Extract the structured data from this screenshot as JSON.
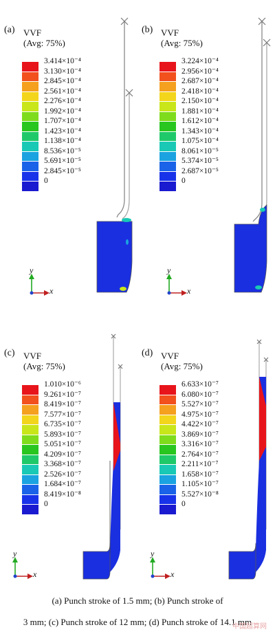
{
  "panels": [
    {
      "id": "a",
      "label": "(a)",
      "legend_title_1": "VVF",
      "legend_title_2": "(Avg: 75%)",
      "values": [
        "3.414×10⁻⁴",
        "3.130×10⁻⁴",
        "2.845×10⁻⁴",
        "2.561×10⁻⁴",
        "2.276×10⁻⁴",
        "1.992×10⁻⁴",
        "1.707×10⁻⁴",
        "1.423×10⁻⁴",
        "1.138×10⁻⁴",
        "8.536×10⁻⁵",
        "5.691×10⁻⁵",
        "2.845×10⁻⁵",
        "0"
      ],
      "axis_y": "y",
      "axis_x": "x"
    },
    {
      "id": "b",
      "label": "(b)",
      "legend_title_1": "VVF",
      "legend_title_2": "(Avg: 75%)",
      "values": [
        "3.224×10⁻⁴",
        "2.956×10⁻⁴",
        "2.687×10⁻⁴",
        "2.418×10⁻⁴",
        "2.150×10⁻⁴",
        "1.881×10⁻⁴",
        "1.612×10⁻⁴",
        "1.343×10⁻⁴",
        "1.075×10⁻⁴",
        "8.061×10⁻⁵",
        "5.374×10⁻⁵",
        "2.687×10⁻⁵",
        "0"
      ],
      "axis_y": "y",
      "axis_x": "x"
    },
    {
      "id": "c",
      "label": "(c)",
      "legend_title_1": "VVF",
      "legend_title_2": "(Avg: 75%)",
      "values": [
        "1.010×10⁻⁶",
        "9.261×10⁻⁷",
        "8.419×10⁻⁷",
        "7.577×10⁻⁷",
        "6.735×10⁻⁷",
        "5.893×10⁻⁷",
        "5.051×10⁻⁷",
        "4.209×10⁻⁷",
        "3.368×10⁻⁷",
        "2.526×10⁻⁷",
        "1.684×10⁻⁷",
        "8.419×10⁻⁸",
        "0"
      ],
      "axis_y": "y",
      "axis_x": "x"
    },
    {
      "id": "d",
      "label": "(d)",
      "legend_title_1": "VVF",
      "legend_title_2": "(Avg: 75%)",
      "values": [
        "6.633×10⁻⁷",
        "6.080×10⁻⁷",
        "5.527×10⁻⁷",
        "4.975×10⁻⁷",
        "4.422×10⁻⁷",
        "3.869×10⁻⁷",
        "3.316×10⁻⁷",
        "2.764×10⁻⁷",
        "2.211×10⁻⁷",
        "1.658×10⁻⁷",
        "1.105×10⁻⁷",
        "5.527×10⁻⁸",
        "0"
      ],
      "axis_y": "y",
      "axis_x": "x"
    }
  ],
  "legend_colors": [
    "#e8141b",
    "#f2501d",
    "#f5a01f",
    "#f3d51b",
    "#c8e61a",
    "#7fdc1c",
    "#28c61f",
    "#1fc96a",
    "#19c9b5",
    "#1aa3e0",
    "#1a63e8",
    "#1832ea",
    "#1a1ad0"
  ],
  "part_color": "#1a2fe0",
  "hot_color": "#e8141b",
  "caption_line_1": "(a) Punch stroke of 1.5 mm; (b) Punch stroke of",
  "caption_line_2": "3 mm; (c) Punch stroke of 12 mm; (d) Punch stroke of 14.1 mm",
  "watermark": "中国超算网"
}
